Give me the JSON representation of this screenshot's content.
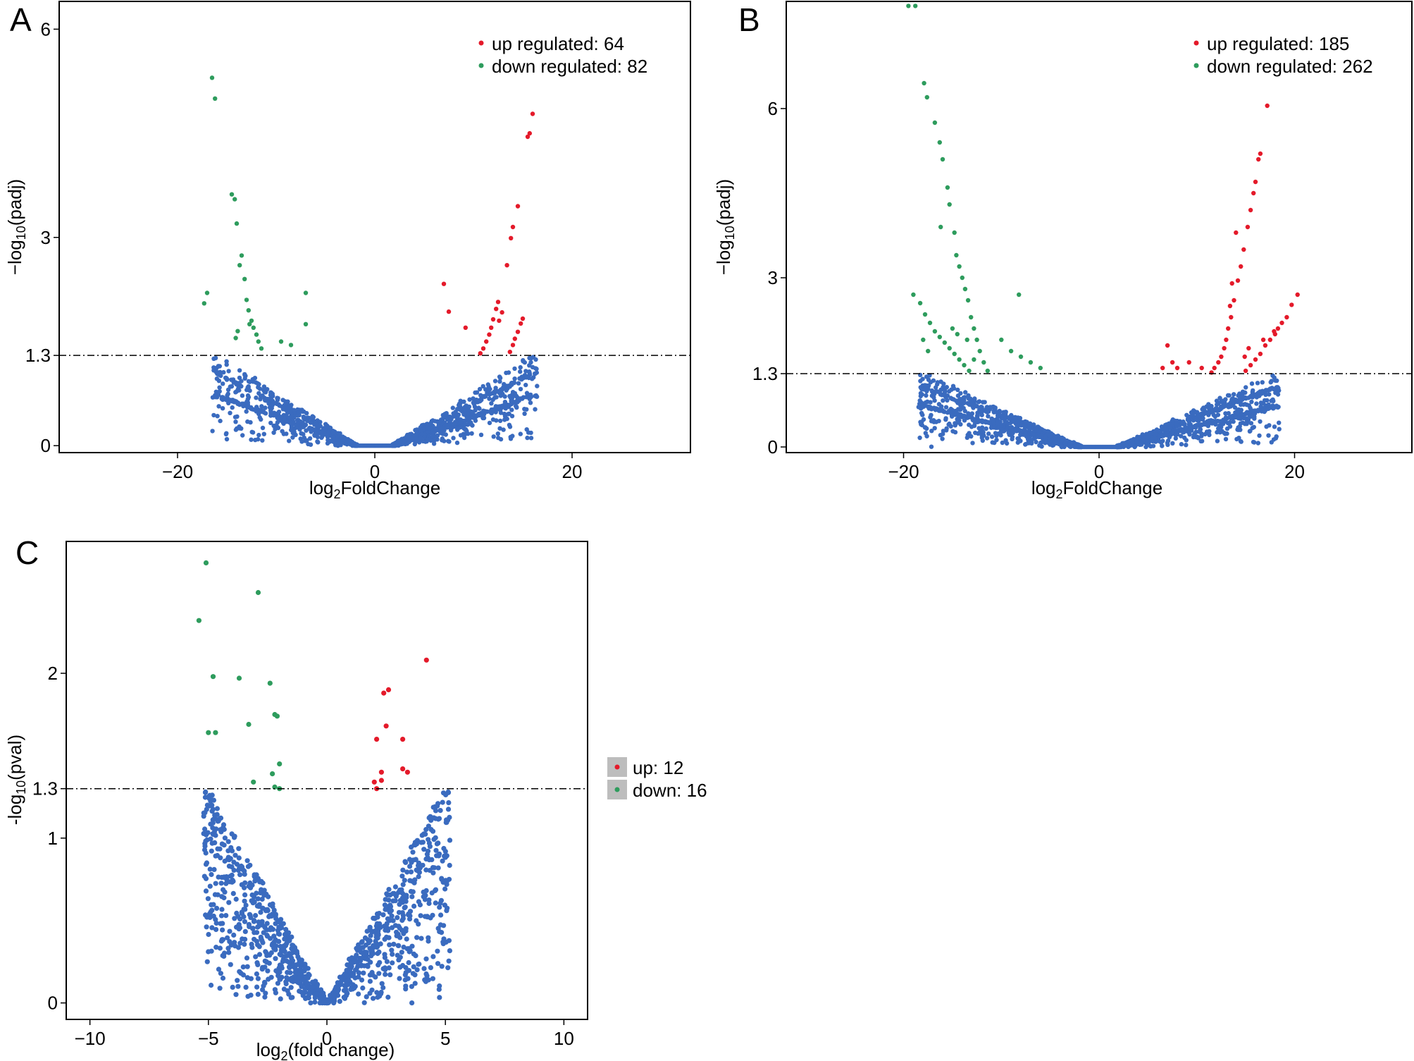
{
  "colors": {
    "up": "#e41a2a",
    "down": "#2e9c5d",
    "ns": "#3a6bbf",
    "legend_box": "#bdbdbd"
  },
  "chart_data": [
    {
      "type": "scatter",
      "panel": "A",
      "xlabel_main": "log",
      "xlabel_sub": "2",
      "xlabel_rest": "FoldChange",
      "ylabel_main": "−log",
      "ylabel_sub": "10",
      "ylabel_rest": "(padj)",
      "xlim": [
        -32,
        32
      ],
      "ylim": [
        -0.1,
        6.4
      ],
      "xticks": [
        -20,
        0,
        20
      ],
      "xtick_labels": [
        "−20",
        "0",
        "20"
      ],
      "yticks": [
        0,
        1.3,
        3,
        6
      ],
      "ytick_labels": [
        "0",
        "1.3",
        "3",
        "6"
      ],
      "threshold": 1.3,
      "x_center": 0,
      "x_gap": 1.8,
      "x_spread": 16.5,
      "y_span": 1.3,
      "n_ns": 1400,
      "legend_position": "top-right",
      "legend": [
        {
          "key": "up",
          "label": "up regulated: 64"
        },
        {
          "key": "down",
          "label": "down regulated: 82"
        }
      ],
      "up_points": [
        [
          16,
          4.78
        ],
        [
          15.7,
          4.5
        ],
        [
          15.5,
          4.45
        ],
        [
          14.5,
          3.45
        ],
        [
          14,
          3.15
        ],
        [
          13.8,
          2.99
        ],
        [
          13.4,
          2.6
        ],
        [
          7,
          2.33
        ],
        [
          7.5,
          1.93
        ],
        [
          9.2,
          1.7
        ],
        [
          15,
          1.83
        ],
        [
          14.8,
          1.76
        ],
        [
          14.5,
          1.64
        ],
        [
          14.2,
          1.54
        ],
        [
          14,
          1.45
        ],
        [
          13.7,
          1.35
        ],
        [
          12.5,
          2.07
        ],
        [
          12.3,
          1.97
        ],
        [
          12.0,
          1.82
        ],
        [
          11.8,
          1.7
        ],
        [
          11.6,
          1.6
        ],
        [
          11.3,
          1.5
        ],
        [
          11.0,
          1.4
        ],
        [
          10.7,
          1.33
        ],
        [
          12.9,
          1.92
        ],
        [
          12.6,
          1.8
        ]
      ],
      "down_points": [
        [
          -16.5,
          5.3
        ],
        [
          -16.2,
          5.0
        ],
        [
          -14.5,
          3.62
        ],
        [
          -14.2,
          3.55
        ],
        [
          -14,
          3.2
        ],
        [
          -13.5,
          2.74
        ],
        [
          -13.7,
          2.6
        ],
        [
          -13.2,
          2.4
        ],
        [
          -17,
          2.2
        ],
        [
          -17.3,
          2.05
        ],
        [
          -7,
          2.2
        ],
        [
          -7,
          1.75
        ],
        [
          -13,
          2.1
        ],
        [
          -12.8,
          1.95
        ],
        [
          -12.5,
          1.8
        ],
        [
          -12.3,
          1.7
        ],
        [
          -12.0,
          1.6
        ],
        [
          -11.8,
          1.5
        ],
        [
          -11.5,
          1.4
        ],
        [
          -13.9,
          1.65
        ],
        [
          -14.1,
          1.55
        ],
        [
          -9.5,
          1.5
        ],
        [
          -8.5,
          1.45
        ],
        [
          -12.7,
          1.75
        ]
      ]
    },
    {
      "type": "scatter",
      "panel": "B",
      "xlabel_main": "log",
      "xlabel_sub": "2",
      "xlabel_rest": "FoldChange",
      "ylabel_main": "−log",
      "ylabel_sub": "10",
      "ylabel_rest": "(padj)",
      "xlim": [
        -32,
        32
      ],
      "ylim": [
        -0.1,
        7.9
      ],
      "xticks": [
        -20,
        0,
        20
      ],
      "xtick_labels": [
        "−20",
        "0",
        "20"
      ],
      "yticks": [
        0,
        1.3,
        3,
        6
      ],
      "ytick_labels": [
        "0",
        "1.3",
        "3",
        "6"
      ],
      "threshold": 1.3,
      "x_center": 0,
      "x_gap": 1.8,
      "x_spread": 18.5,
      "y_span": 1.3,
      "n_ns": 1700,
      "legend_position": "top-right",
      "legend": [
        {
          "key": "up",
          "label": "up regulated: 185"
        },
        {
          "key": "down",
          "label": "down regulated: 262"
        }
      ],
      "up_points": [
        [
          17.2,
          6.05
        ],
        [
          16.5,
          5.2
        ],
        [
          16.3,
          5.1
        ],
        [
          16,
          4.7
        ],
        [
          15.8,
          4.5
        ],
        [
          15.5,
          4.2
        ],
        [
          15.2,
          3.9
        ],
        [
          14.8,
          3.5
        ],
        [
          14.5,
          3.2
        ],
        [
          14.2,
          2.95
        ],
        [
          13.8,
          2.6
        ],
        [
          13.5,
          2.3
        ],
        [
          13.2,
          2.1
        ],
        [
          13.0,
          1.9
        ],
        [
          12.8,
          1.75
        ],
        [
          12.5,
          1.6
        ],
        [
          12.2,
          1.5
        ],
        [
          11.8,
          1.4
        ],
        [
          11.5,
          1.32
        ],
        [
          14,
          3.8
        ],
        [
          13.6,
          2.9
        ],
        [
          13.4,
          2.5
        ],
        [
          20.3,
          2.7
        ],
        [
          19.7,
          2.52
        ],
        [
          19.2,
          2.3
        ],
        [
          18.7,
          2.2
        ],
        [
          18.3,
          2.1
        ],
        [
          18.0,
          2.0
        ],
        [
          17.5,
          1.9
        ],
        [
          17,
          1.8
        ],
        [
          16.5,
          1.65
        ],
        [
          16,
          1.55
        ],
        [
          15.5,
          1.45
        ],
        [
          15,
          1.35
        ],
        [
          7,
          1.8
        ],
        [
          7.5,
          1.5
        ],
        [
          8,
          1.4
        ],
        [
          9.2,
          1.5
        ],
        [
          10.5,
          1.4
        ],
        [
          6.5,
          1.4
        ],
        [
          14.9,
          1.6
        ],
        [
          15.3,
          1.75
        ],
        [
          16.8,
          1.9
        ],
        [
          17.9,
          2.05
        ]
      ],
      "down_points": [
        [
          -19.5,
          7.82
        ],
        [
          -18.8,
          7.82
        ],
        [
          -17.9,
          6.45
        ],
        [
          -17.6,
          6.2
        ],
        [
          -16.8,
          5.75
        ],
        [
          -16.3,
          5.4
        ],
        [
          -16.0,
          5.1
        ],
        [
          -15.5,
          4.6
        ],
        [
          -15.3,
          4.3
        ],
        [
          -14.8,
          3.8
        ],
        [
          -14.6,
          3.4
        ],
        [
          -14.3,
          3.2
        ],
        [
          -14.0,
          3.0
        ],
        [
          -13.7,
          2.8
        ],
        [
          -13.4,
          2.6
        ],
        [
          -13.1,
          2.3
        ],
        [
          -12.8,
          2.1
        ],
        [
          -12.5,
          1.9
        ],
        [
          -12.2,
          1.7
        ],
        [
          -11.8,
          1.5
        ],
        [
          -11.4,
          1.35
        ],
        [
          -19,
          2.7
        ],
        [
          -18.3,
          2.55
        ],
        [
          -17.8,
          2.35
        ],
        [
          -17.3,
          2.2
        ],
        [
          -16.8,
          2.05
        ],
        [
          -16.3,
          1.95
        ],
        [
          -15.8,
          1.85
        ],
        [
          -15.3,
          1.75
        ],
        [
          -14.8,
          1.65
        ],
        [
          -14.3,
          1.55
        ],
        [
          -13.8,
          1.45
        ],
        [
          -13.3,
          1.35
        ],
        [
          -8.2,
          2.7
        ],
        [
          -10,
          1.9
        ],
        [
          -9,
          1.7
        ],
        [
          -8,
          1.6
        ],
        [
          -7,
          1.5
        ],
        [
          -6,
          1.4
        ],
        [
          -18,
          1.9
        ],
        [
          -17.5,
          1.7
        ],
        [
          -15,
          2.1
        ],
        [
          -14.5,
          2.0
        ],
        [
          -13.5,
          1.9
        ],
        [
          -12.8,
          1.55
        ],
        [
          -16.2,
          3.9
        ]
      ]
    },
    {
      "type": "scatter",
      "panel": "C",
      "xlabel_main": "log",
      "xlabel_sub": "2",
      "xlabel_rest": "(fold change)",
      "ylabel_main": "-log",
      "ylabel_sub": "10",
      "ylabel_rest": "(pval)",
      "xlim": [
        -11,
        11
      ],
      "ylim": [
        -0.1,
        2.8
      ],
      "xticks": [
        -10,
        -5,
        0,
        5,
        10
      ],
      "xtick_labels": [
        "−10",
        "−5",
        "0",
        "5",
        "10"
      ],
      "yticks": [
        0,
        1,
        1.3,
        2
      ],
      "ytick_labels": [
        "0",
        "1",
        "1.3",
        "2"
      ],
      "threshold": 1.3,
      "x_center": 0,
      "x_gap": 0,
      "x_spread": 5.2,
      "y_span": 1.3,
      "n_ns": 1100,
      "legend_position": "right",
      "legend": [
        {
          "key": "up",
          "label": "up: 12"
        },
        {
          "key": "down",
          "label": "down: 16"
        }
      ],
      "up_points": [
        [
          4.2,
          2.08
        ],
        [
          2.6,
          1.9
        ],
        [
          2.4,
          1.88
        ],
        [
          2.5,
          1.68
        ],
        [
          3.2,
          1.6
        ],
        [
          2.1,
          1.6
        ],
        [
          3.2,
          1.42
        ],
        [
          3.4,
          1.4
        ],
        [
          2.3,
          1.4
        ],
        [
          2.3,
          1.35
        ],
        [
          2.0,
          1.34
        ],
        [
          2.1,
          1.3
        ]
      ],
      "down_points": [
        [
          -5.1,
          2.67
        ],
        [
          -2.9,
          2.49
        ],
        [
          -5.4,
          2.32
        ],
        [
          -4.8,
          1.98
        ],
        [
          -3.7,
          1.97
        ],
        [
          -2.4,
          1.94
        ],
        [
          -2.2,
          1.75
        ],
        [
          -2.1,
          1.74
        ],
        [
          -3.3,
          1.69
        ],
        [
          -4.7,
          1.64
        ],
        [
          -5.0,
          1.64
        ],
        [
          -2.0,
          1.45
        ],
        [
          -2.3,
          1.39
        ],
        [
          -3.1,
          1.34
        ],
        [
          -2.2,
          1.31
        ],
        [
          -2.0,
          1.3
        ]
      ]
    }
  ]
}
